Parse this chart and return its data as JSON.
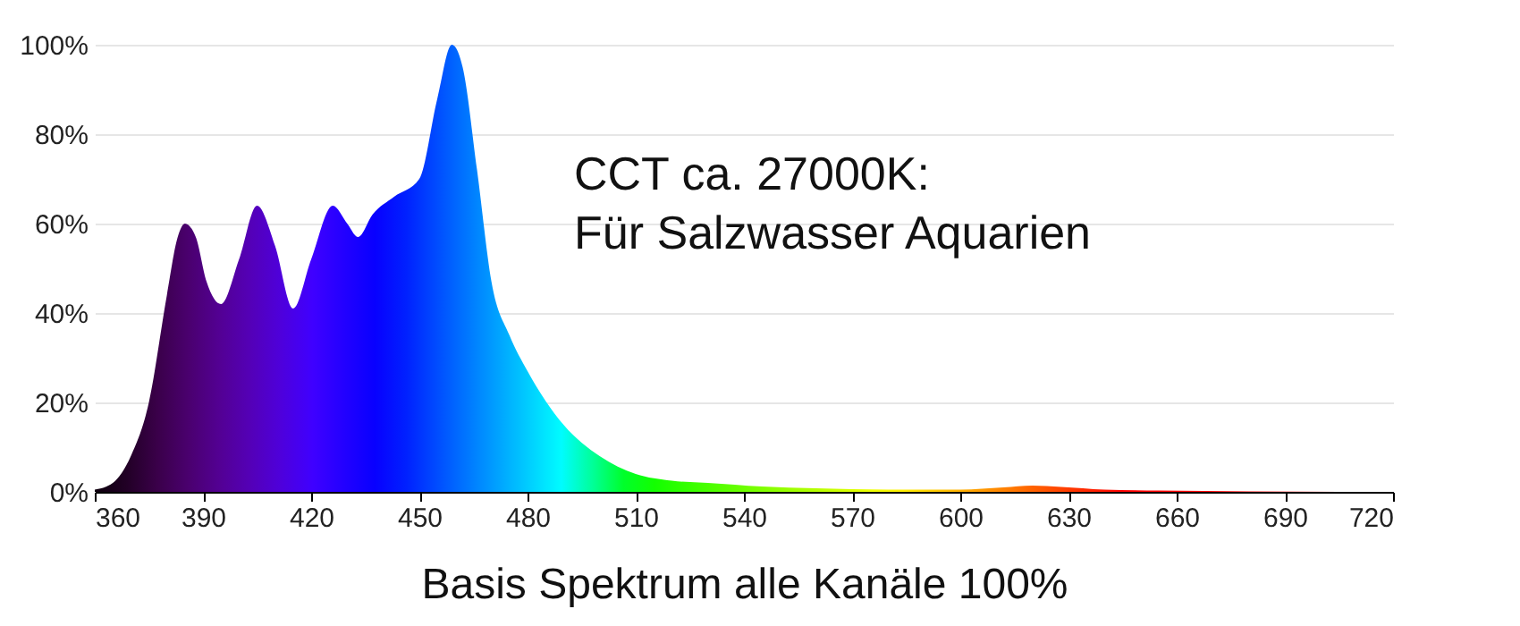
{
  "chart_data": {
    "type": "area",
    "xlabel": "Basis Spektrum alle Kanäle 100%",
    "annotations": [
      "CCT ca. 27000K:",
      "Für Salzwasser Aquarien"
    ],
    "x": [
      360,
      365,
      370,
      375,
      380,
      383,
      385,
      388,
      391,
      395,
      400,
      405,
      410,
      415,
      420,
      426,
      430,
      433,
      437,
      443,
      450,
      455,
      459,
      462,
      466,
      470,
      475,
      480,
      490,
      500,
      510,
      520,
      530,
      545,
      560,
      580,
      600,
      612,
      620,
      628,
      640,
      655,
      680,
      705
    ],
    "values": [
      0.5,
      2,
      8,
      20,
      44,
      57,
      60,
      57,
      47,
      42,
      52,
      64,
      55,
      41,
      52,
      64,
      60,
      57,
      62,
      66,
      70,
      88,
      100,
      95,
      72,
      47,
      35,
      27,
      15,
      8,
      4,
      2.5,
      2,
      1.2,
      0.8,
      0.5,
      0.5,
      1,
      1.4,
      1.1,
      0.5,
      0.3,
      0.1,
      0
    ],
    "xlim": [
      360,
      720
    ],
    "xticks": [
      360,
      390,
      420,
      450,
      480,
      510,
      540,
      570,
      600,
      630,
      660,
      690,
      720
    ],
    "ylim": [
      0,
      100
    ],
    "yticks": [
      {
        "value": 0,
        "label": "0%"
      },
      {
        "value": 20,
        "label": "20%"
      },
      {
        "value": 40,
        "label": "40%"
      },
      {
        "value": 60,
        "label": "60%"
      },
      {
        "value": 80,
        "label": "80%"
      },
      {
        "value": 100,
        "label": "100%"
      }
    ],
    "grid": "y"
  }
}
